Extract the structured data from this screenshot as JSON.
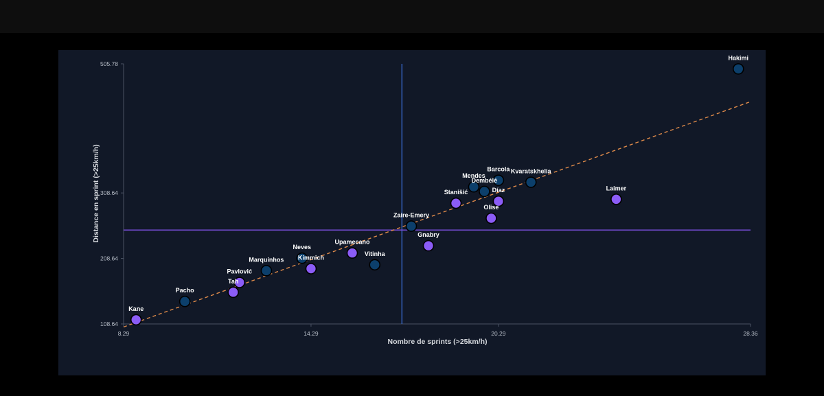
{
  "chart_data": {
    "type": "scatter",
    "xlabel": "Nombre de sprints (>25km/h)",
    "ylabel": "Distance en sprint (>25km/h)",
    "xlim": [
      8.29,
      28.36
    ],
    "ylim": [
      108.64,
      505.78
    ],
    "x_ticks": [
      "8.29",
      "14.29",
      "20.29",
      "28.36"
    ],
    "y_ticks": [
      "108.64",
      "208.64",
      "308.64",
      "505.78"
    ],
    "mean_x": 17.2,
    "mean_y": 252,
    "trendline": {
      "x": [
        8.29,
        28.36
      ],
      "y": [
        104,
        448
      ]
    },
    "colors": {
      "dark_point": "#0c3f6b",
      "light_point": "#8b5cf6",
      "trend_line": "#e08b4a",
      "mean_x_line": "#3b6fd8",
      "mean_y_line": "#7b4fe0"
    },
    "points": [
      {
        "name": "Hakimi",
        "x": 27.97,
        "y": 498,
        "color": "dark"
      },
      {
        "name": "Kvaratskhelia",
        "x": 21.33,
        "y": 325,
        "color": "dark"
      },
      {
        "name": "Barcola",
        "x": 20.29,
        "y": 328,
        "color": "dark"
      },
      {
        "name": "Mendes",
        "x": 19.5,
        "y": 318,
        "color": "dark"
      },
      {
        "name": "Dembélé",
        "x": 19.84,
        "y": 311,
        "color": "dark"
      },
      {
        "name": "Díaz",
        "x": 20.29,
        "y": 296,
        "color": "light"
      },
      {
        "name": "Laimer",
        "x": 24.06,
        "y": 299,
        "color": "light"
      },
      {
        "name": "Stanišić",
        "x": 18.93,
        "y": 293,
        "color": "light"
      },
      {
        "name": "Olise",
        "x": 20.06,
        "y": 270,
        "color": "light"
      },
      {
        "name": "Zaire-Emery",
        "x": 17.5,
        "y": 258,
        "color": "dark"
      },
      {
        "name": "Gnabry",
        "x": 18.05,
        "y": 228,
        "color": "light"
      },
      {
        "name": "Upamecano",
        "x": 15.61,
        "y": 217,
        "color": "light"
      },
      {
        "name": "Vitinha",
        "x": 16.33,
        "y": 199,
        "color": "dark"
      },
      {
        "name": "Neves",
        "x": 14.0,
        "y": 209,
        "color": "dark"
      },
      {
        "name": "Kimmich",
        "x": 14.29,
        "y": 193,
        "color": "light"
      },
      {
        "name": "Marquinhos",
        "x": 12.86,
        "y": 190,
        "color": "dark"
      },
      {
        "name": "Pavlović",
        "x": 12.0,
        "y": 172,
        "color": "light"
      },
      {
        "name": "Tah",
        "x": 11.8,
        "y": 157,
        "color": "light"
      },
      {
        "name": "Pacho",
        "x": 10.25,
        "y": 143,
        "color": "dark"
      },
      {
        "name": "Kane",
        "x": 8.69,
        "y": 115,
        "color": "light"
      }
    ]
  }
}
